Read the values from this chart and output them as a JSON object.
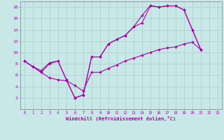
{
  "background_color": "#c8e8e8",
  "grid_color": "#a8cece",
  "line_color": "#aa00aa",
  "xlabel": "Windchill (Refroidissement éolien,°C)",
  "xlim": [
    -0.5,
    23.5
  ],
  "ylim": [
    0,
    19
  ],
  "ytick_values": [
    2,
    4,
    6,
    8,
    10,
    12,
    14,
    16,
    18
  ],
  "line1_x": [
    0,
    1,
    2,
    3,
    4,
    5,
    6,
    7,
    8,
    9,
    10,
    11,
    12,
    13,
    14,
    15,
    16,
    17,
    18,
    19,
    20,
    21
  ],
  "line1_y": [
    8.5,
    7.5,
    6.5,
    8.0,
    8.5,
    5.2,
    2.0,
    2.5,
    9.2,
    9.2,
    11.5,
    12.3,
    13.0,
    14.5,
    15.2,
    18.2,
    18.0,
    18.2,
    18.2,
    17.5,
    14.0,
    10.5
  ],
  "line2_x": [
    0,
    1,
    2,
    3,
    4,
    5,
    6,
    7,
    8,
    9,
    10,
    11,
    12,
    13,
    14,
    15,
    16,
    17,
    18,
    19,
    20,
    21
  ],
  "line2_y": [
    8.5,
    7.5,
    6.8,
    8.2,
    8.5,
    5.2,
    2.0,
    2.5,
    9.2,
    9.2,
    11.5,
    12.3,
    13.0,
    14.5,
    16.5,
    18.3,
    18.0,
    18.2,
    18.2,
    17.5,
    14.0,
    10.5
  ],
  "line3_x": [
    0,
    1,
    2,
    3,
    4,
    5,
    6,
    7,
    8,
    9,
    10,
    11,
    12,
    13,
    14,
    15,
    16,
    17,
    18,
    19,
    20,
    21
  ],
  "line3_y": [
    8.5,
    7.5,
    6.5,
    5.5,
    5.2,
    5.0,
    4.2,
    3.2,
    6.5,
    6.5,
    7.2,
    7.8,
    8.5,
    9.0,
    9.5,
    10.0,
    10.5,
    10.8,
    11.0,
    11.5,
    11.8,
    10.5
  ],
  "xtick_labels": [
    "0",
    "1",
    "2",
    "3",
    "4",
    "5",
    "6",
    "7",
    "8",
    "9",
    "10",
    "11",
    "12",
    "13",
    "14",
    "15",
    "16",
    "17",
    "18",
    "19",
    "20",
    "21",
    "22",
    "23"
  ]
}
